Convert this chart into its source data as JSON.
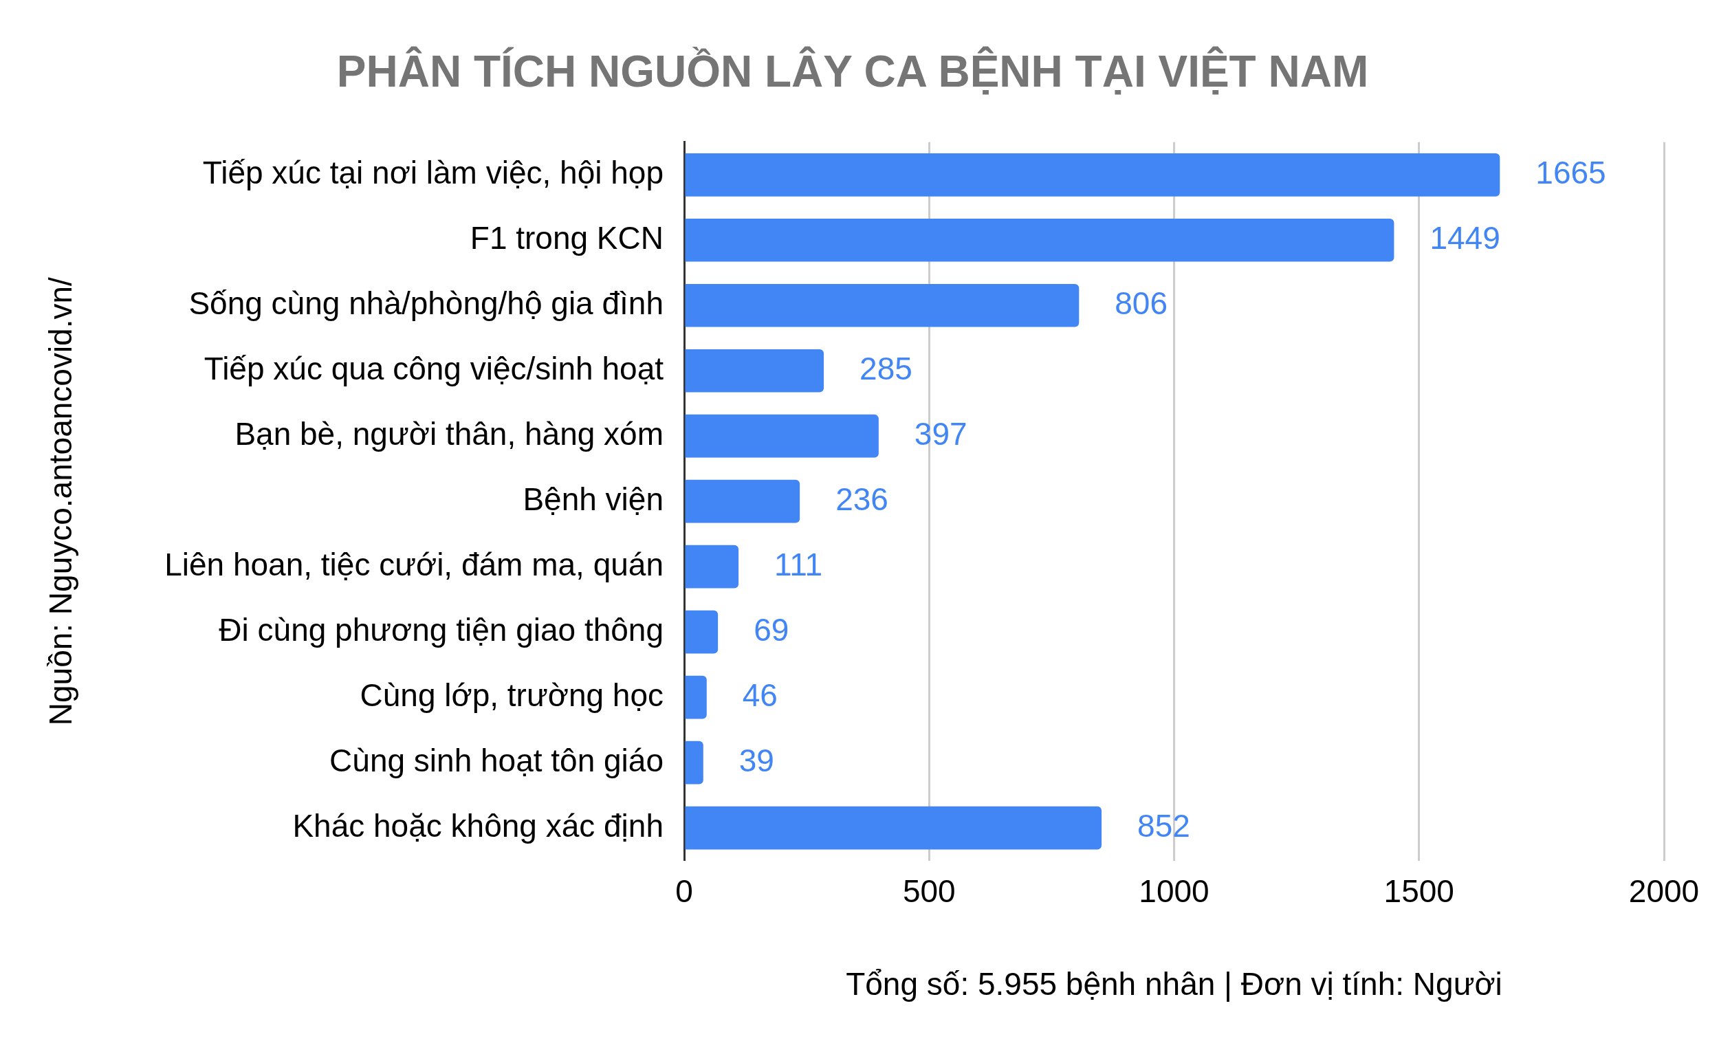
{
  "chart_data": {
    "type": "bar",
    "orientation": "horizontal",
    "title": "PHÂN TÍCH NGUỒN LÂY CA BỆNH TẠI VIỆT NAM",
    "xlabel": "Tổng số: 5.955 bệnh nhân | Đơn vị tính: Người",
    "ylabel": "Nguồn: Nguyco.antoancovid.vn/",
    "categories": [
      "Tiếp xúc tại nơi làm việc, hội họp",
      "F1 trong KCN",
      "Sống cùng nhà/phòng/hộ gia đình",
      "Tiếp xúc qua công việc/sinh hoạt",
      "Bạn bè, người thân, hàng xóm",
      "Bệnh viện",
      "Liên hoan, tiệc cưới, đám ma, quán",
      "Đi cùng phương tiện giao thông",
      "Cùng lớp, trường học",
      "Cùng sinh hoạt tôn giáo",
      "Khác hoặc không xác định"
    ],
    "values": [
      1665,
      1449,
      806,
      285,
      397,
      236,
      111,
      69,
      46,
      39,
      852
    ],
    "color": "#4285f4",
    "data_labels": true,
    "xlim": [
      0,
      2000
    ],
    "xticks": [
      0,
      500,
      1000,
      1500,
      2000
    ],
    "grid": "x",
    "legend": false
  }
}
